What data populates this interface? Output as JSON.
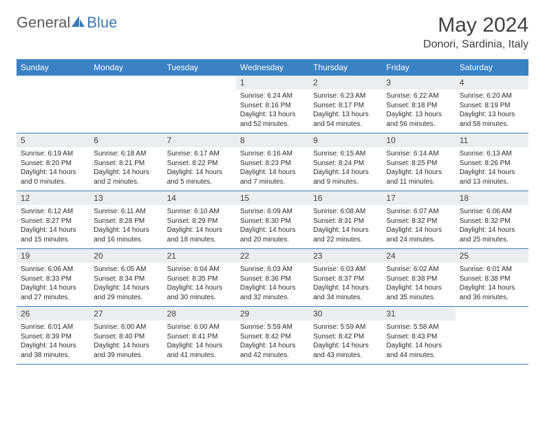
{
  "logo": {
    "text1": "General",
    "text2": "Blue",
    "text1_color": "#5a5a5a",
    "text2_color": "#3b7ab8",
    "shape_color": "#3b7ab8"
  },
  "title": {
    "month": "May 2024",
    "location": "Donori, Sardinia, Italy",
    "color": "#404040",
    "month_fontsize": 30,
    "location_fontsize": 16
  },
  "colors": {
    "header_bg": "#3b82c4",
    "header_text": "#ffffff",
    "daynum_bg": "#ebeef0",
    "daynum_text": "#404040",
    "content_text": "#2a2a2a",
    "row_border": "#3b7ab8",
    "page_bg": "#ffffff"
  },
  "weekdays": [
    "Sunday",
    "Monday",
    "Tuesday",
    "Wednesday",
    "Thursday",
    "Friday",
    "Saturday"
  ],
  "weeks": [
    [
      {
        "day": "",
        "sunrise": "",
        "sunset": "",
        "daylight": ""
      },
      {
        "day": "",
        "sunrise": "",
        "sunset": "",
        "daylight": ""
      },
      {
        "day": "",
        "sunrise": "",
        "sunset": "",
        "daylight": ""
      },
      {
        "day": "1",
        "sunrise": "Sunrise: 6:24 AM",
        "sunset": "Sunset: 8:16 PM",
        "daylight": "Daylight: 13 hours and 52 minutes."
      },
      {
        "day": "2",
        "sunrise": "Sunrise: 6:23 AM",
        "sunset": "Sunset: 8:17 PM",
        "daylight": "Daylight: 13 hours and 54 minutes."
      },
      {
        "day": "3",
        "sunrise": "Sunrise: 6:22 AM",
        "sunset": "Sunset: 8:18 PM",
        "daylight": "Daylight: 13 hours and 56 minutes."
      },
      {
        "day": "4",
        "sunrise": "Sunrise: 6:20 AM",
        "sunset": "Sunset: 8:19 PM",
        "daylight": "Daylight: 13 hours and 58 minutes."
      }
    ],
    [
      {
        "day": "5",
        "sunrise": "Sunrise: 6:19 AM",
        "sunset": "Sunset: 8:20 PM",
        "daylight": "Daylight: 14 hours and 0 minutes."
      },
      {
        "day": "6",
        "sunrise": "Sunrise: 6:18 AM",
        "sunset": "Sunset: 8:21 PM",
        "daylight": "Daylight: 14 hours and 2 minutes."
      },
      {
        "day": "7",
        "sunrise": "Sunrise: 6:17 AM",
        "sunset": "Sunset: 8:22 PM",
        "daylight": "Daylight: 14 hours and 5 minutes."
      },
      {
        "day": "8",
        "sunrise": "Sunrise: 6:16 AM",
        "sunset": "Sunset: 8:23 PM",
        "daylight": "Daylight: 14 hours and 7 minutes."
      },
      {
        "day": "9",
        "sunrise": "Sunrise: 6:15 AM",
        "sunset": "Sunset: 8:24 PM",
        "daylight": "Daylight: 14 hours and 9 minutes."
      },
      {
        "day": "10",
        "sunrise": "Sunrise: 6:14 AM",
        "sunset": "Sunset: 8:25 PM",
        "daylight": "Daylight: 14 hours and 11 minutes."
      },
      {
        "day": "11",
        "sunrise": "Sunrise: 6:13 AM",
        "sunset": "Sunset: 8:26 PM",
        "daylight": "Daylight: 14 hours and 13 minutes."
      }
    ],
    [
      {
        "day": "12",
        "sunrise": "Sunrise: 6:12 AM",
        "sunset": "Sunset: 8:27 PM",
        "daylight": "Daylight: 14 hours and 15 minutes."
      },
      {
        "day": "13",
        "sunrise": "Sunrise: 6:11 AM",
        "sunset": "Sunset: 8:28 PM",
        "daylight": "Daylight: 14 hours and 16 minutes."
      },
      {
        "day": "14",
        "sunrise": "Sunrise: 6:10 AM",
        "sunset": "Sunset: 8:29 PM",
        "daylight": "Daylight: 14 hours and 18 minutes."
      },
      {
        "day": "15",
        "sunrise": "Sunrise: 6:09 AM",
        "sunset": "Sunset: 8:30 PM",
        "daylight": "Daylight: 14 hours and 20 minutes."
      },
      {
        "day": "16",
        "sunrise": "Sunrise: 6:08 AM",
        "sunset": "Sunset: 8:31 PM",
        "daylight": "Daylight: 14 hours and 22 minutes."
      },
      {
        "day": "17",
        "sunrise": "Sunrise: 6:07 AM",
        "sunset": "Sunset: 8:32 PM",
        "daylight": "Daylight: 14 hours and 24 minutes."
      },
      {
        "day": "18",
        "sunrise": "Sunrise: 6:06 AM",
        "sunset": "Sunset: 8:32 PM",
        "daylight": "Daylight: 14 hours and 25 minutes."
      }
    ],
    [
      {
        "day": "19",
        "sunrise": "Sunrise: 6:06 AM",
        "sunset": "Sunset: 8:33 PM",
        "daylight": "Daylight: 14 hours and 27 minutes."
      },
      {
        "day": "20",
        "sunrise": "Sunrise: 6:05 AM",
        "sunset": "Sunset: 8:34 PM",
        "daylight": "Daylight: 14 hours and 29 minutes."
      },
      {
        "day": "21",
        "sunrise": "Sunrise: 6:04 AM",
        "sunset": "Sunset: 8:35 PM",
        "daylight": "Daylight: 14 hours and 30 minutes."
      },
      {
        "day": "22",
        "sunrise": "Sunrise: 6:03 AM",
        "sunset": "Sunset: 8:36 PM",
        "daylight": "Daylight: 14 hours and 32 minutes."
      },
      {
        "day": "23",
        "sunrise": "Sunrise: 6:03 AM",
        "sunset": "Sunset: 8:37 PM",
        "daylight": "Daylight: 14 hours and 34 minutes."
      },
      {
        "day": "24",
        "sunrise": "Sunrise: 6:02 AM",
        "sunset": "Sunset: 8:38 PM",
        "daylight": "Daylight: 14 hours and 35 minutes."
      },
      {
        "day": "25",
        "sunrise": "Sunrise: 6:01 AM",
        "sunset": "Sunset: 8:38 PM",
        "daylight": "Daylight: 14 hours and 36 minutes."
      }
    ],
    [
      {
        "day": "26",
        "sunrise": "Sunrise: 6:01 AM",
        "sunset": "Sunset: 8:39 PM",
        "daylight": "Daylight: 14 hours and 38 minutes."
      },
      {
        "day": "27",
        "sunrise": "Sunrise: 6:00 AM",
        "sunset": "Sunset: 8:40 PM",
        "daylight": "Daylight: 14 hours and 39 minutes."
      },
      {
        "day": "28",
        "sunrise": "Sunrise: 6:00 AM",
        "sunset": "Sunset: 8:41 PM",
        "daylight": "Daylight: 14 hours and 41 minutes."
      },
      {
        "day": "29",
        "sunrise": "Sunrise: 5:59 AM",
        "sunset": "Sunset: 8:42 PM",
        "daylight": "Daylight: 14 hours and 42 minutes."
      },
      {
        "day": "30",
        "sunrise": "Sunrise: 5:59 AM",
        "sunset": "Sunset: 8:42 PM",
        "daylight": "Daylight: 14 hours and 43 minutes."
      },
      {
        "day": "31",
        "sunrise": "Sunrise: 5:58 AM",
        "sunset": "Sunset: 8:43 PM",
        "daylight": "Daylight: 14 hours and 44 minutes."
      },
      {
        "day": "",
        "sunrise": "",
        "sunset": "",
        "daylight": ""
      }
    ]
  ]
}
